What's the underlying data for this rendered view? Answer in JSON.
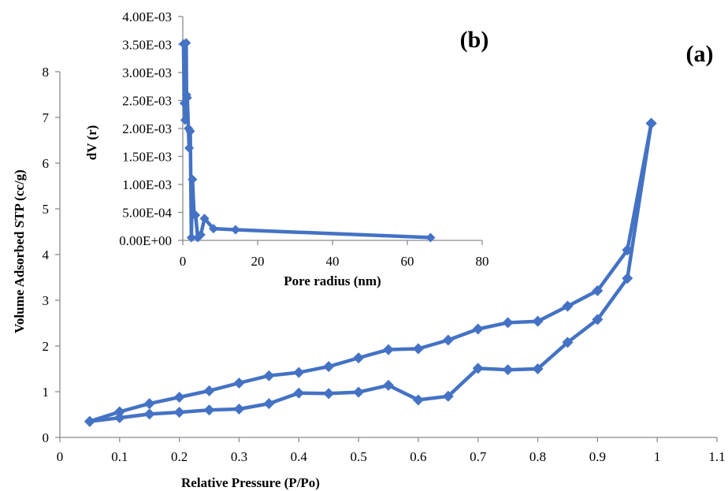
{
  "chart_data": [
    {
      "id": "main",
      "type": "line",
      "panel_label": "(a)",
      "xlabel": "Relative Pressure (P/Po)",
      "ylabel": "Volume Adsorbed STP (cc/g)",
      "xlim": [
        0,
        1.1
      ],
      "ylim": [
        0,
        8
      ],
      "x_ticks": [
        "0",
        "0.1",
        "0.2",
        "0.3",
        "0.4",
        "0.5",
        "0.6",
        "0.7",
        "0.8",
        "0.9",
        "1",
        "1.1"
      ],
      "y_ticks": [
        "0",
        "1",
        "2",
        "3",
        "4",
        "5",
        "6",
        "7",
        "8"
      ],
      "grid": false,
      "marker": "diamond",
      "color": "#4472c4",
      "series": [
        {
          "x": [
            0.05,
            0.1,
            0.15,
            0.2,
            0.25,
            0.3,
            0.35,
            0.4,
            0.45,
            0.5,
            0.55,
            0.6,
            0.65,
            0.7,
            0.75,
            0.8,
            0.85,
            0.9,
            0.95,
            0.99
          ],
          "y": [
            0.35,
            0.43,
            0.51,
            0.55,
            0.6,
            0.62,
            0.74,
            0.97,
            0.96,
            0.99,
            1.14,
            0.82,
            0.9,
            1.51,
            1.48,
            1.5,
            2.08,
            2.58,
            3.48,
            6.87
          ]
        },
        {
          "x": [
            0.05,
            0.1,
            0.15,
            0.2,
            0.25,
            0.3,
            0.35,
            0.4,
            0.45,
            0.5,
            0.55,
            0.6,
            0.65,
            0.7,
            0.75,
            0.8,
            0.85,
            0.9,
            0.95,
            0.99
          ],
          "y": [
            0.35,
            0.56,
            0.74,
            0.88,
            1.02,
            1.19,
            1.35,
            1.42,
            1.55,
            1.74,
            1.92,
            1.94,
            2.13,
            2.37,
            2.51,
            2.54,
            2.87,
            3.21,
            4.1,
            6.87
          ]
        }
      ]
    },
    {
      "id": "inset",
      "type": "line",
      "panel_label": "(b)",
      "xlabel": "Pore radius (nm)",
      "ylabel": "dV (r)",
      "xlim": [
        0,
        80
      ],
      "ylim": [
        0,
        0.004
      ],
      "x_ticks": [
        "0",
        "20",
        "40",
        "60",
        "80"
      ],
      "y_ticks": [
        "0.00E+00",
        "5.00E-04",
        "1.00E-03",
        "1.50E-03",
        "2.00E-03",
        "2.50E-03",
        "3.00E-03",
        "3.50E-03",
        "4.00E-03"
      ],
      "grid": false,
      "marker": "diamond",
      "color": "#4472c4",
      "series": [
        {
          "x": [
            0.2,
            0.4,
            0.6,
            0.9,
            1.0,
            1.2,
            1.5,
            1.7,
            2.0,
            2.3,
            2.6,
            3.0,
            3.4,
            4.0,
            4.8,
            5.8,
            8.2,
            14.1,
            66.2
          ],
          "y": [
            0.00351,
            0.00245,
            0.00215,
            0.00353,
            0.0026,
            0.00255,
            0.002,
            0.00165,
            0.00195,
            5e-05,
            0.00109,
            0.00047,
            0.00045,
            5e-05,
            0.0001,
            0.00039,
            0.00021,
            0.00019,
            5e-05
          ]
        }
      ]
    }
  ]
}
